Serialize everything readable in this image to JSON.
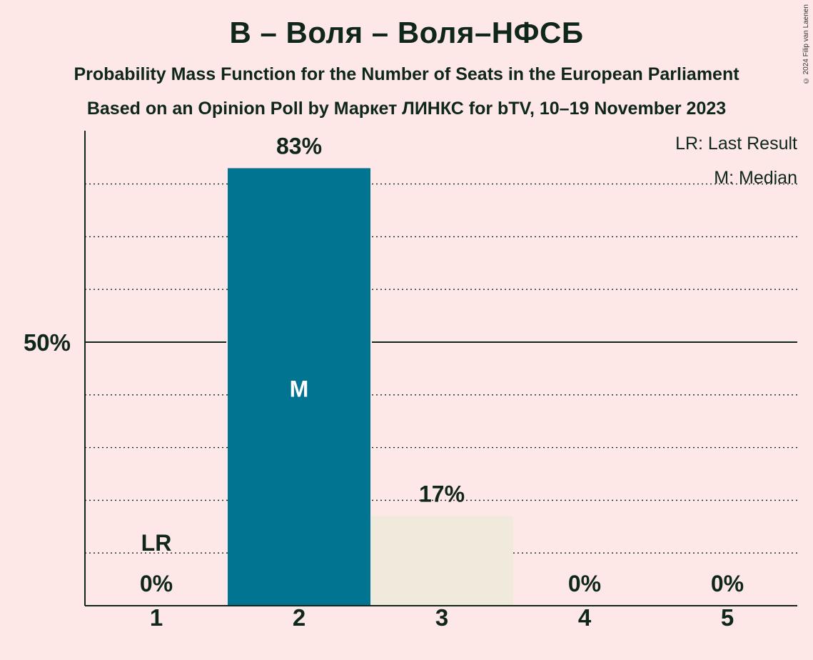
{
  "title": "В – Воля – Воля–НФСБ",
  "subtitle_1": "Probability Mass Function for the Number of Seats in the European Parliament",
  "subtitle_2": "Based on an Opinion Poll by Маркет ЛИНКС for bTV, 10–19 November 2023",
  "copyright": "© 2024 Filip van Laenen",
  "legend": {
    "last_result": "LR: Last Result",
    "median": "M: Median"
  },
  "colors": {
    "background": "#fde7e7",
    "party": "#007490",
    "other": "#f0eadc",
    "text": "#0f261a"
  },
  "chart_data": {
    "type": "bar",
    "categories": [
      "1",
      "2",
      "3",
      "4",
      "5"
    ],
    "values": [
      0,
      83,
      17,
      0,
      0
    ],
    "value_labels": [
      "0%",
      "83%",
      "17%",
      "0%",
      "0%"
    ],
    "ylim": [
      0,
      90
    ],
    "ytick_label": "50%",
    "ytick_value": 50,
    "gridlines": [
      10,
      20,
      30,
      40,
      60,
      70,
      80
    ],
    "last_result_category": "1",
    "last_result_label": "LR",
    "median_category": "2",
    "median_label": "M"
  }
}
